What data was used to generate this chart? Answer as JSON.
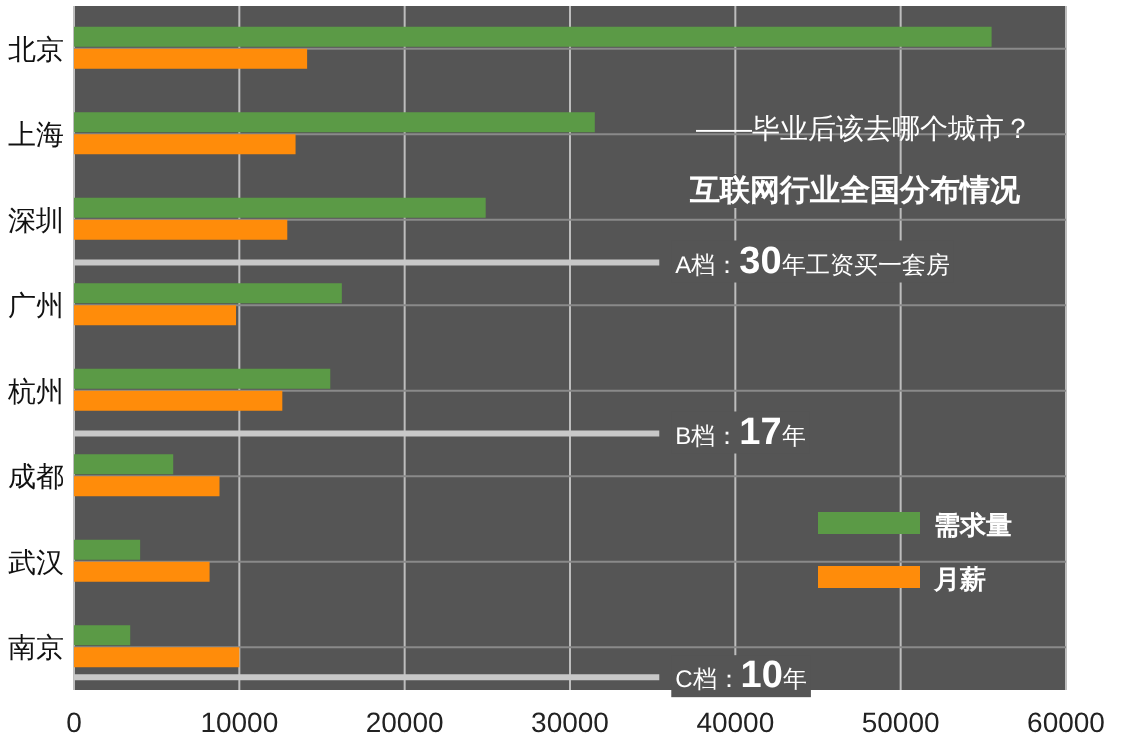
{
  "chart_data": {
    "type": "bar",
    "orientation": "horizontal",
    "title": "互联网行业全国分布情况",
    "subtitle": "——毕业后该去哪个城市？",
    "categories": [
      "北京",
      "上海",
      "深圳",
      "广州",
      "杭州",
      "成都",
      "武汉",
      "南京"
    ],
    "series": [
      {
        "name": "需求量",
        "color": "#5b9a46",
        "values": [
          55500,
          31500,
          24900,
          16200,
          15500,
          6000,
          4000,
          3400
        ]
      },
      {
        "name": "月薪",
        "color": "#ff8c0a",
        "values": [
          14100,
          13400,
          12900,
          9800,
          12600,
          8800,
          8200,
          10000
        ]
      }
    ],
    "xlim": [
      0,
      60000
    ],
    "xticks": [
      0,
      10000,
      20000,
      30000,
      40000,
      50000,
      60000
    ],
    "annotations": [
      "A档：30年工资买一套房",
      "B档：17年",
      "C档：10年"
    ],
    "grid": true,
    "legend": "bottom right"
  }
}
